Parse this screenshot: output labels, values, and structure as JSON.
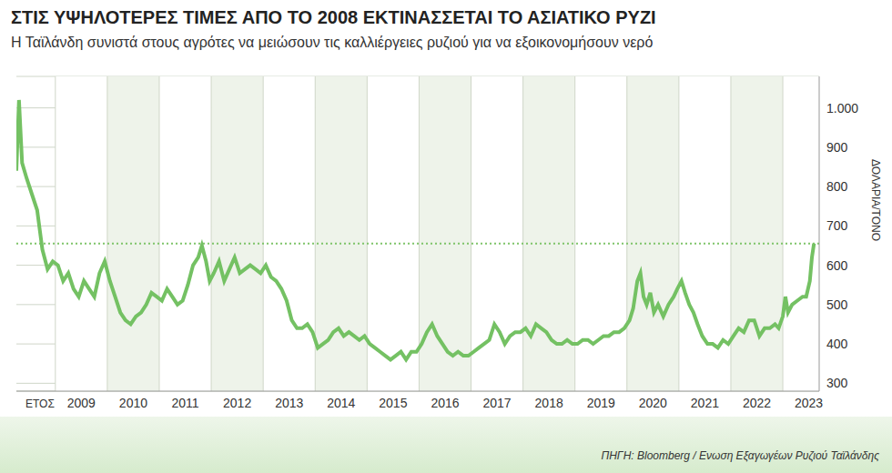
{
  "chart_data": {
    "type": "line",
    "title": "ΣΤΙΣ ΥΨΗΛΟΤΕΡΕΣ ΤΙΜΕΣ ΑΠΟ ΤΟ 2008 ΕΚΤΙΝΑΣΣΕΤΑΙ ΤΟ ΑΣΙΑΤΙΚΟ ΡΥΖΙ",
    "subtitle": "Η Ταϊλάνδη συνιστά στους αγρότες να μειώσουν τις καλλιέργειες ρυζιού για να εξοικονομήσουν νερό",
    "source": "ΠΗΓΗ: Bloomberg / Ενωση Εξαγωγέων Ρυζιού Ταϊλάνδης",
    "x_label": "ΕΤΟΣ",
    "y_label": "ΔΟΛΑΡΙΑ/ΤΟΝΟ",
    "color": "#74c163",
    "grid": true,
    "reference_line": {
      "value": 655,
      "line_style": "dotted",
      "color": "#7fc46a"
    },
    "xlim": [
      2008.25,
      2023.7
    ],
    "xticks": [
      {
        "value": 2009.5,
        "label": "2009"
      },
      {
        "value": 2010.5,
        "label": "2010"
      },
      {
        "value": 2011.5,
        "label": "2011"
      },
      {
        "value": 2012.5,
        "label": "2012"
      },
      {
        "value": 2013.5,
        "label": "2013"
      },
      {
        "value": 2014.5,
        "label": "2014"
      },
      {
        "value": 2015.5,
        "label": "2015"
      },
      {
        "value": 2016.5,
        "label": "2016"
      },
      {
        "value": 2017.5,
        "label": "2017"
      },
      {
        "value": 2018.5,
        "label": "2018"
      },
      {
        "value": 2019.5,
        "label": "2019"
      },
      {
        "value": 2020.5,
        "label": "2020"
      },
      {
        "value": 2021.5,
        "label": "2021"
      },
      {
        "value": 2022.5,
        "label": "2022"
      },
      {
        "value": 2023.5,
        "label": "2023"
      }
    ],
    "ylim": [
      280,
      1080
    ],
    "yticks": [
      {
        "value": 1000,
        "label": "1.000"
      },
      900,
      800,
      700,
      600,
      500,
      400,
      300
    ],
    "x": [
      2008.25,
      2008.3,
      2008.36,
      2008.45,
      2008.55,
      2008.65,
      2008.75,
      2008.85,
      2008.95,
      2009.05,
      2009.15,
      2009.25,
      2009.35,
      2009.45,
      2009.55,
      2009.65,
      2009.75,
      2009.85,
      2009.95,
      2010.05,
      2010.15,
      2010.25,
      2010.35,
      2010.45,
      2010.55,
      2010.65,
      2010.75,
      2010.85,
      2010.95,
      2011.05,
      2011.15,
      2011.25,
      2011.35,
      2011.45,
      2011.55,
      2011.65,
      2011.75,
      2011.82,
      2011.9,
      2011.97,
      2012.05,
      2012.15,
      2012.25,
      2012.35,
      2012.45,
      2012.55,
      2012.65,
      2012.75,
      2012.85,
      2012.95,
      2013.05,
      2013.15,
      2013.25,
      2013.35,
      2013.45,
      2013.55,
      2013.65,
      2013.75,
      2013.85,
      2013.95,
      2014.05,
      2014.15,
      2014.25,
      2014.35,
      2014.45,
      2014.55,
      2014.65,
      2014.75,
      2014.85,
      2014.95,
      2015.05,
      2015.15,
      2015.25,
      2015.35,
      2015.45,
      2015.55,
      2015.65,
      2015.75,
      2015.85,
      2015.95,
      2016.05,
      2016.15,
      2016.25,
      2016.35,
      2016.45,
      2016.55,
      2016.65,
      2016.75,
      2016.85,
      2016.95,
      2017.05,
      2017.15,
      2017.25,
      2017.35,
      2017.45,
      2017.55,
      2017.65,
      2017.75,
      2017.85,
      2017.95,
      2018.05,
      2018.15,
      2018.25,
      2018.35,
      2018.45,
      2018.55,
      2018.65,
      2018.75,
      2018.85,
      2018.95,
      2019.05,
      2019.15,
      2019.25,
      2019.35,
      2019.45,
      2019.55,
      2019.65,
      2019.75,
      2019.85,
      2019.95,
      2020.05,
      2020.12,
      2020.2,
      2020.26,
      2020.32,
      2020.38,
      2020.45,
      2020.52,
      2020.6,
      2020.7,
      2020.8,
      2020.9,
      2020.97,
      2021.05,
      2021.12,
      2021.2,
      2021.28,
      2021.36,
      2021.45,
      2021.55,
      2021.65,
      2021.75,
      2021.85,
      2021.95,
      2022.05,
      2022.15,
      2022.25,
      2022.35,
      2022.45,
      2022.55,
      2022.65,
      2022.75,
      2022.85,
      2022.92,
      2023.0,
      2023.05,
      2023.1,
      2023.18,
      2023.28,
      2023.38,
      2023.45,
      2023.52,
      2023.56,
      2023.6
    ],
    "values": [
      840,
      1020,
      860,
      820,
      780,
      740,
      640,
      590,
      610,
      600,
      560,
      580,
      540,
      520,
      560,
      540,
      520,
      580,
      610,
      560,
      520,
      480,
      460,
      450,
      470,
      480,
      500,
      530,
      520,
      510,
      540,
      520,
      500,
      510,
      550,
      600,
      620,
      650,
      610,
      560,
      580,
      610,
      560,
      590,
      620,
      580,
      590,
      600,
      590,
      580,
      600,
      570,
      560,
      540,
      510,
      460,
      440,
      440,
      450,
      430,
      390,
      400,
      410,
      430,
      440,
      420,
      430,
      420,
      410,
      420,
      400,
      390,
      380,
      370,
      360,
      370,
      380,
      360,
      380,
      380,
      400,
      430,
      450,
      420,
      400,
      380,
      370,
      380,
      370,
      370,
      380,
      390,
      400,
      410,
      450,
      430,
      400,
      420,
      430,
      430,
      440,
      420,
      450,
      440,
      430,
      410,
      400,
      400,
      410,
      400,
      400,
      410,
      410,
      400,
      410,
      420,
      420,
      430,
      430,
      440,
      460,
      490,
      560,
      580,
      520,
      500,
      530,
      480,
      500,
      470,
      500,
      520,
      540,
      560,
      530,
      500,
      480,
      450,
      420,
      400,
      400,
      390,
      410,
      400,
      420,
      440,
      430,
      460,
      460,
      420,
      440,
      440,
      450,
      440,
      470,
      520,
      480,
      500,
      510,
      520,
      520,
      560,
      620,
      655
    ]
  }
}
